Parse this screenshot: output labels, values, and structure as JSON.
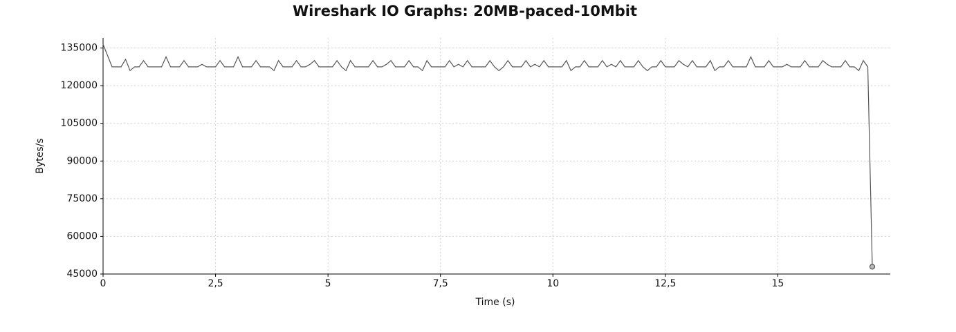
{
  "chart_data": {
    "type": "line",
    "title": "Wireshark IO Graphs: 20MB-paced-10Mbit",
    "xlabel": "Time (s)",
    "ylabel": "Bytes/s",
    "x": [
      0,
      0.1,
      0.2,
      0.3,
      0.4,
      0.5,
      0.6,
      0.7,
      0.8,
      0.9,
      1,
      1.1,
      1.2,
      1.3,
      1.4,
      1.5,
      1.6,
      1.7,
      1.8,
      1.9,
      2,
      2.1,
      2.2,
      2.3,
      2.4,
      2.5,
      2.6,
      2.7,
      2.8,
      2.9,
      3,
      3.1,
      3.2,
      3.3,
      3.4,
      3.5,
      3.6,
      3.7,
      3.8,
      3.9,
      4,
      4.1,
      4.2,
      4.3,
      4.4,
      4.5,
      4.6,
      4.7,
      4.8,
      4.9,
      5,
      5.1,
      5.2,
      5.3,
      5.4,
      5.5,
      5.6,
      5.7,
      5.8,
      5.9,
      6,
      6.1,
      6.2,
      6.3,
      6.4,
      6.5,
      6.6,
      6.7,
      6.8,
      6.9,
      7,
      7.1,
      7.2,
      7.3,
      7.4,
      7.5,
      7.6,
      7.7,
      7.8,
      7.9,
      8,
      8.1,
      8.2,
      8.3,
      8.4,
      8.5,
      8.6,
      8.7,
      8.8,
      8.9,
      9,
      9.1,
      9.2,
      9.3,
      9.4,
      9.5,
      9.6,
      9.7,
      9.8,
      9.9,
      10,
      10.1,
      10.2,
      10.3,
      10.4,
      10.5,
      10.6,
      10.7,
      10.8,
      10.9,
      11,
      11.1,
      11.2,
      11.3,
      11.4,
      11.5,
      11.6,
      11.7,
      11.8,
      11.9,
      12,
      12.1,
      12.2,
      12.3,
      12.4,
      12.5,
      12.6,
      12.7,
      12.8,
      12.9,
      13,
      13.1,
      13.2,
      13.3,
      13.4,
      13.5,
      13.6,
      13.7,
      13.8,
      13.9,
      14,
      14.1,
      14.2,
      14.3,
      14.4,
      14.5,
      14.6,
      14.7,
      14.8,
      14.9,
      15,
      15.1,
      15.2,
      15.3,
      15.4,
      15.5,
      15.6,
      15.7,
      15.8,
      15.9,
      16,
      16.1,
      16.2,
      16.3,
      16.4,
      16.5,
      16.6,
      16.7,
      16.8,
      16.9,
      17,
      17.1
    ],
    "values": [
      136500,
      132000,
      127500,
      127500,
      127500,
      130500,
      126000,
      127500,
      127500,
      130000,
      127500,
      127500,
      127500,
      127500,
      131500,
      127500,
      127500,
      127500,
      130000,
      127500,
      127500,
      127500,
      128500,
      127500,
      127500,
      127500,
      130000,
      127500,
      127500,
      127500,
      131500,
      127500,
      127500,
      127500,
      130000,
      127500,
      127500,
      127500,
      126000,
      130000,
      127500,
      127500,
      127500,
      130000,
      127500,
      127500,
      128500,
      130000,
      127500,
      127500,
      127500,
      127500,
      130000,
      127500,
      126000,
      130000,
      127500,
      127500,
      127500,
      127500,
      130000,
      127500,
      127500,
      128500,
      130000,
      127500,
      127500,
      127500,
      130000,
      127500,
      127500,
      126000,
      130000,
      127500,
      127500,
      127500,
      127500,
      130000,
      127500,
      128500,
      127500,
      130000,
      127500,
      127500,
      127500,
      127500,
      130000,
      127500,
      126000,
      127500,
      130000,
      127500,
      127500,
      127500,
      130000,
      127500,
      128500,
      127500,
      130000,
      127500,
      127500,
      127500,
      127500,
      130000,
      126000,
      127500,
      127500,
      130000,
      127500,
      127500,
      127500,
      130000,
      127500,
      128500,
      127500,
      130000,
      127500,
      127500,
      127500,
      130000,
      127500,
      126000,
      127500,
      127500,
      130000,
      127500,
      127500,
      127500,
      130000,
      128500,
      127500,
      130000,
      127500,
      127500,
      127500,
      130000,
      126000,
      127500,
      127500,
      130000,
      127500,
      127500,
      127500,
      127500,
      131500,
      127500,
      127500,
      127500,
      130000,
      127500,
      127500,
      127500,
      128500,
      127500,
      127500,
      127500,
      130000,
      127500,
      127500,
      127500,
      130000,
      128500,
      127500,
      127500,
      127500,
      130000,
      127500,
      127500,
      126000,
      130000,
      127500,
      47900
    ],
    "color": "#555555",
    "xlim": [
      0,
      17.5
    ],
    "ylim": [
      45000,
      139000
    ],
    "xticks": [
      0,
      {
        "value": 2.5,
        "label": "2,5"
      },
      5,
      {
        "value": 7.5,
        "label": "7,5"
      },
      10,
      {
        "value": 12.5,
        "label": "12,5"
      },
      15
    ],
    "yticks": [
      45000,
      60000,
      75000,
      90000,
      105000,
      120000,
      135000
    ],
    "grid": true
  }
}
